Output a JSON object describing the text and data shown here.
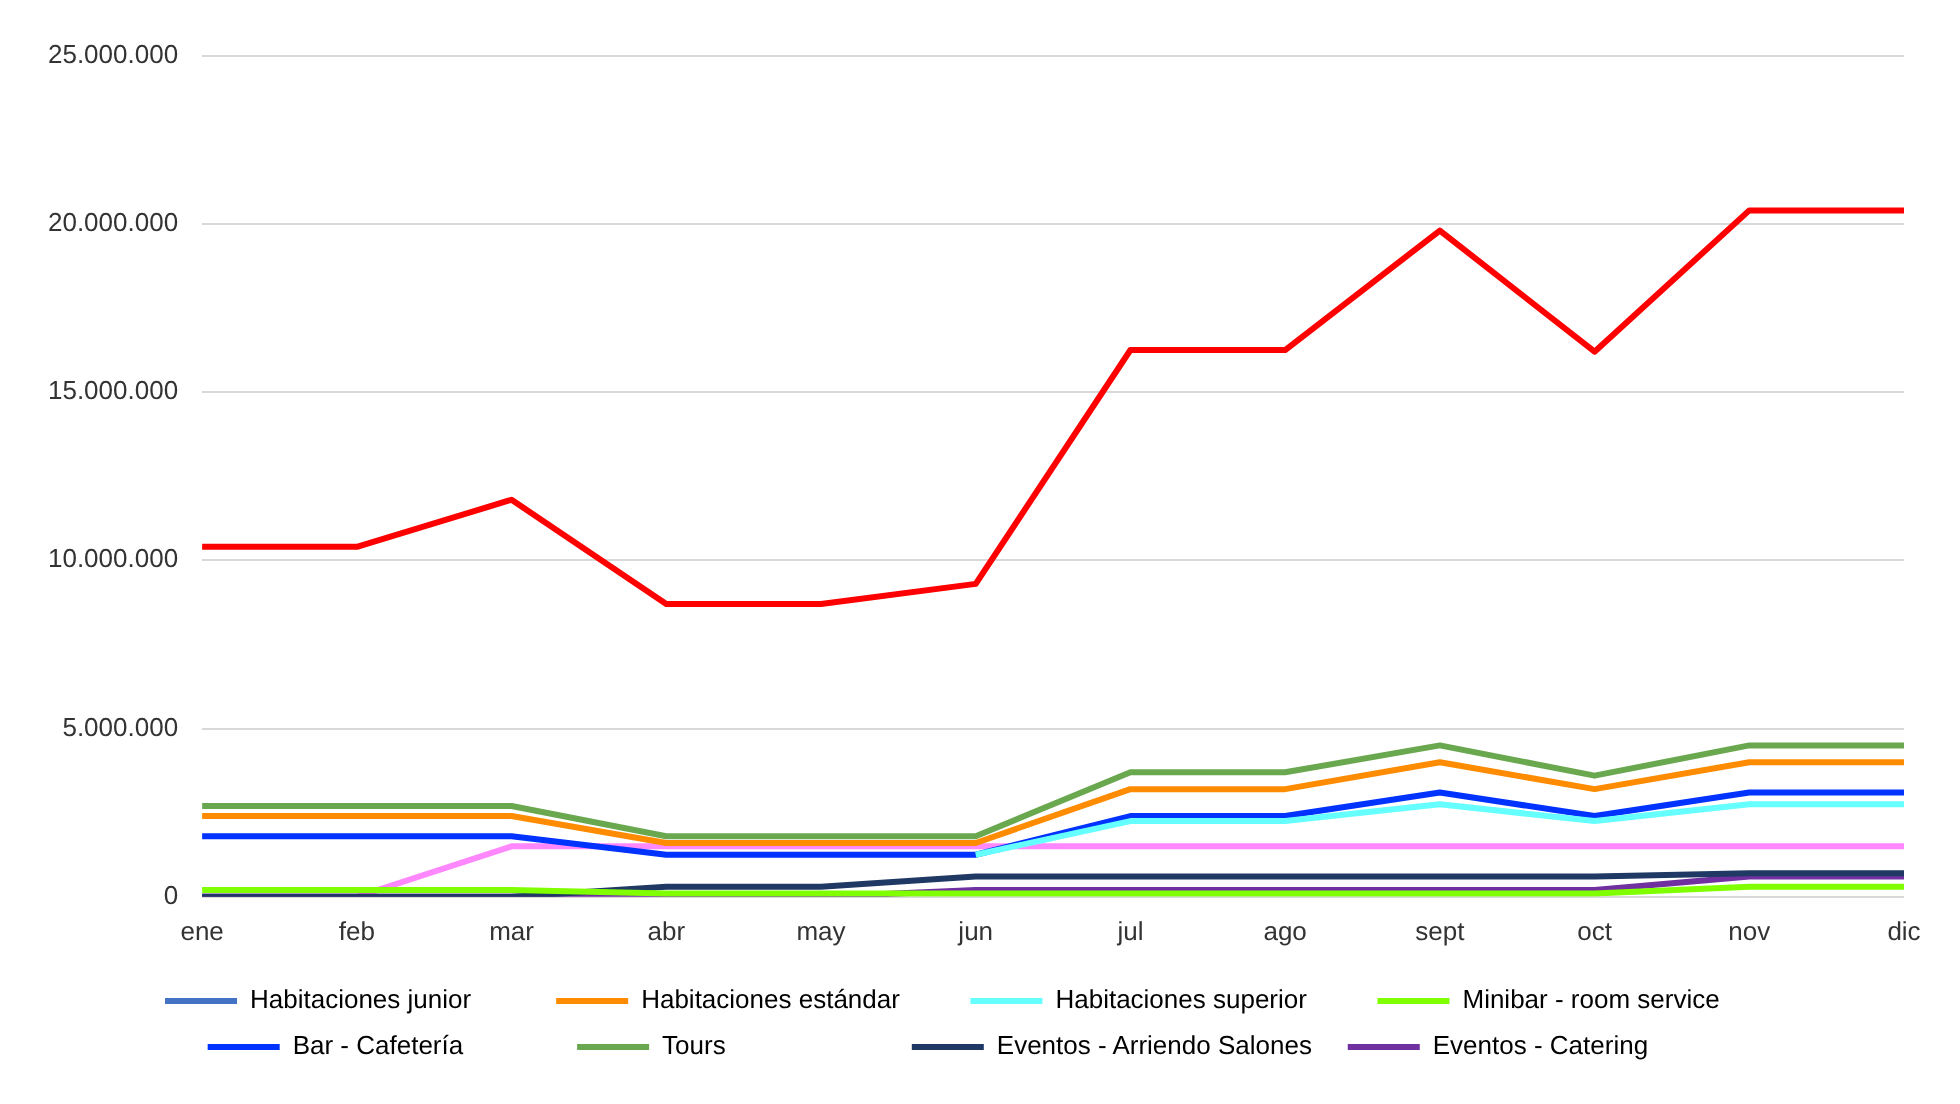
{
  "chart_data": {
    "type": "line",
    "categories": [
      "ene",
      "feb",
      "mar",
      "abr",
      "may",
      "jun",
      "jul",
      "ago",
      "sept",
      "oct",
      "nov",
      "dic"
    ],
    "series": [
      {
        "name": "Habitaciones junior",
        "color": "#4472c4",
        "values": [
          null,
          null,
          null,
          null,
          null,
          null,
          null,
          null,
          null,
          null,
          null,
          null
        ]
      },
      {
        "name": "Habitaciones estándar",
        "color": "#ff8c00",
        "values": [
          2400000,
          2400000,
          2400000,
          1600000,
          1600000,
          1600000,
          3200000,
          3200000,
          4000000,
          3200000,
          4000000,
          4000000
        ]
      },
      {
        "name": "Habitaciones superior",
        "color": "#66ffff",
        "values": [
          null,
          null,
          null,
          null,
          null,
          1250000,
          2250000,
          2250000,
          2750000,
          2250000,
          2750000,
          2750000
        ]
      },
      {
        "name": "Minibar - room service",
        "color": "#80ff00",
        "values": [
          200000,
          200000,
          200000,
          100000,
          100000,
          100000,
          100000,
          100000,
          100000,
          100000,
          300000,
          300000
        ]
      },
      {
        "name": "Bar - Cafetería",
        "color": "#0033ff",
        "values": [
          1800000,
          1800000,
          1800000,
          1250000,
          1250000,
          1250000,
          2400000,
          2400000,
          3100000,
          2400000,
          3100000,
          3100000
        ]
      },
      {
        "name": "Tours",
        "color": "#6aa84f",
        "values": [
          2700000,
          2700000,
          2700000,
          1800000,
          1800000,
          1800000,
          3700000,
          3700000,
          4500000,
          3600000,
          4500000,
          4500000
        ]
      },
      {
        "name": "Eventos - Arriendo Salones",
        "color": "#1f3864",
        "values": [
          0,
          0,
          0,
          300000,
          300000,
          600000,
          600000,
          600000,
          600000,
          600000,
          700000,
          700000
        ]
      },
      {
        "name": "Eventos - Catering",
        "color": "#7030a0",
        "values": [
          0,
          0,
          0,
          0,
          0,
          200000,
          200000,
          200000,
          200000,
          200000,
          600000,
          600000
        ]
      },
      {
        "color": "#ff88ff",
        "values": [
          0,
          0,
          1500000,
          1500000,
          1500000,
          1500000,
          1500000,
          1500000,
          1500000,
          1500000,
          1500000,
          1500000
        ]
      },
      {
        "color": "#ff0000",
        "values": [
          10400000,
          10400000,
          11800000,
          8700000,
          8700000,
          9300000,
          16250000,
          16250000,
          19800000,
          16200000,
          20400000,
          20400000
        ]
      }
    ],
    "ylim": [
      0,
      25000000
    ],
    "yticks": [
      {
        "value": 0,
        "label": "0"
      },
      {
        "value": 5000000,
        "label": "5.000.000"
      },
      {
        "value": 10000000,
        "label": "10.000.000"
      },
      {
        "value": 15000000,
        "label": "15.000.000"
      },
      {
        "value": 20000000,
        "label": "20.000.000"
      },
      {
        "value": 25000000,
        "label": "25.000.000"
      }
    ],
    "grid": "y",
    "legend": "bottom",
    "marker": "none",
    "line_style": "solid"
  }
}
